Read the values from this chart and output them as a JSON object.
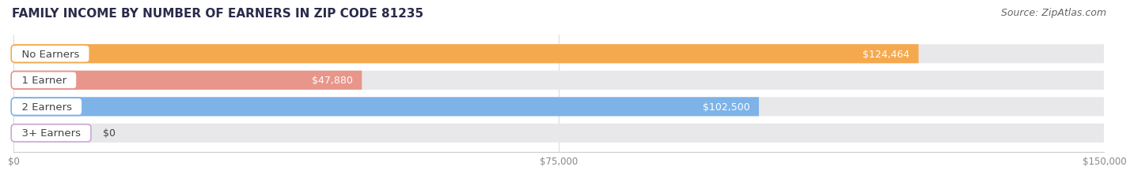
{
  "title": "FAMILY INCOME BY NUMBER OF EARNERS IN ZIP CODE 81235",
  "source": "Source: ZipAtlas.com",
  "categories": [
    "No Earners",
    "1 Earner",
    "2 Earners",
    "3+ Earners"
  ],
  "values": [
    124464,
    47880,
    102500,
    0
  ],
  "labels": [
    "$124,464",
    "$47,880",
    "$102,500",
    "$0"
  ],
  "bar_colors": [
    "#F5A94E",
    "#E8958A",
    "#7EB3E8",
    "#C9A8D4"
  ],
  "bar_bg_color": "#E8E8EA",
  "xlim": [
    0,
    150000
  ],
  "xticks": [
    0,
    75000,
    150000
  ],
  "xtick_labels": [
    "$0",
    "$75,000",
    "$150,000"
  ],
  "title_fontsize": 11,
  "source_fontsize": 9,
  "label_fontsize": 9,
  "category_fontsize": 9.5,
  "background_color": "#FFFFFF",
  "bar_height": 0.72,
  "label_color": "#FFFFFF",
  "category_text_color": "#444444",
  "grid_color": "#D8D8D8",
  "axis_color": "#CCCCCC"
}
